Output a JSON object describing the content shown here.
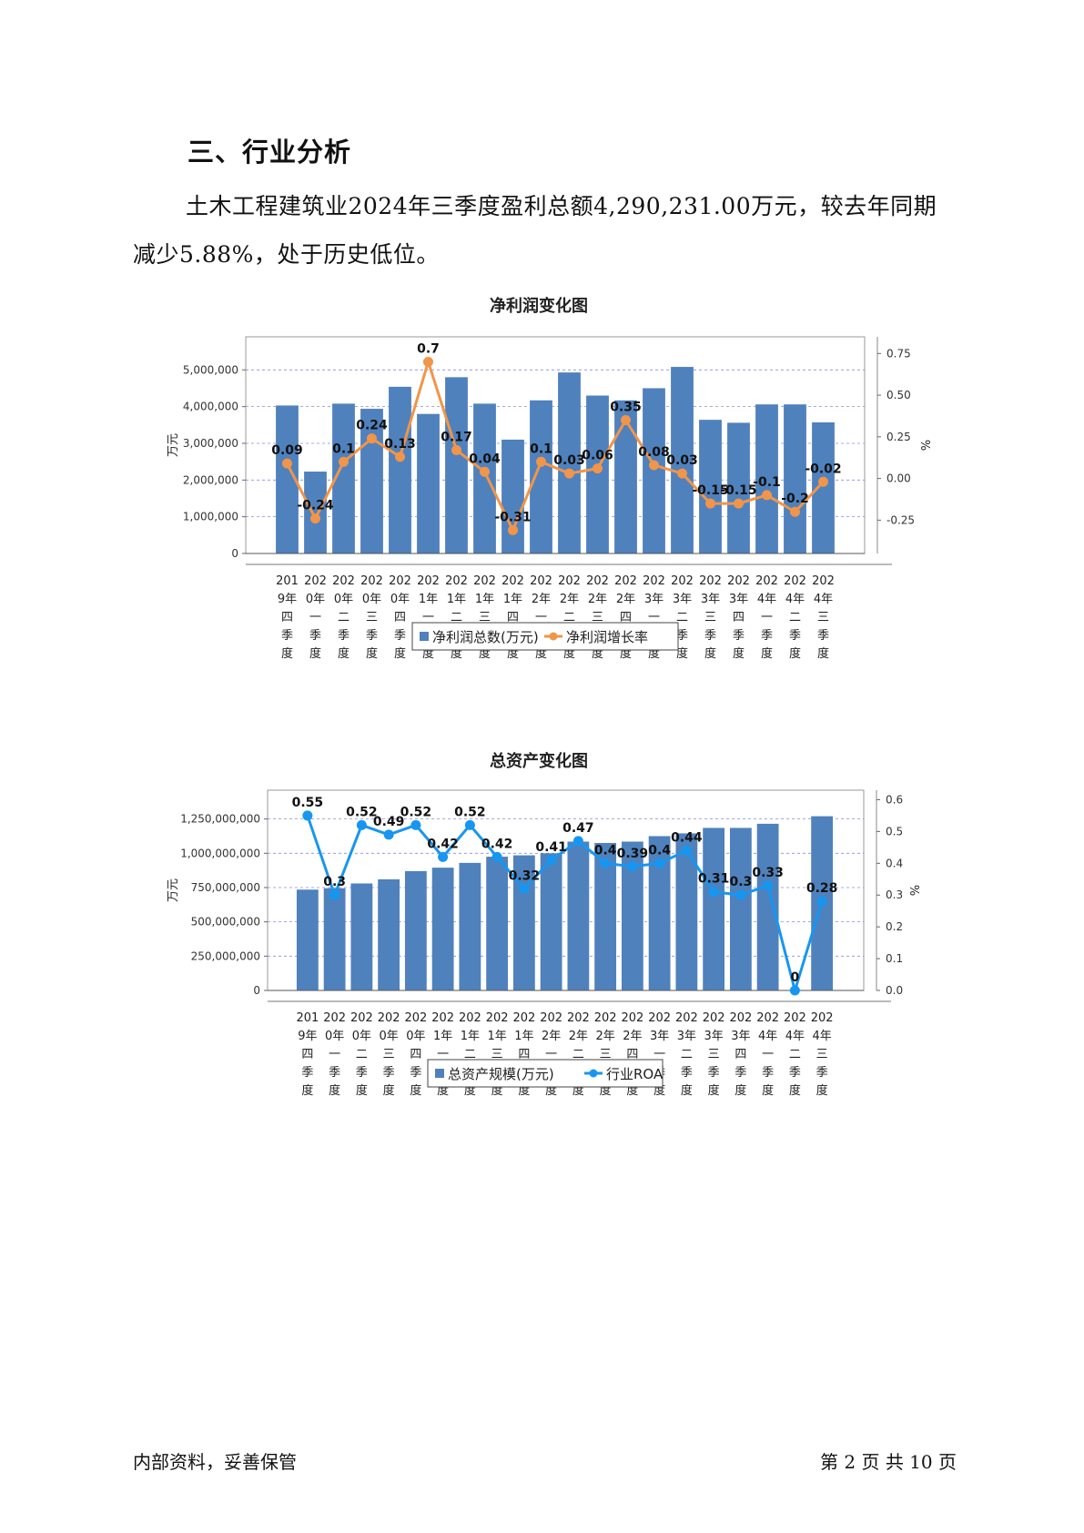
{
  "section": {
    "title": "三、行业分析",
    "paragraph": "土木工程建筑业2024年三季度盈利总额4,290,231.00万元，较去年同期减少5.88%，处于历史低位。"
  },
  "footer": {
    "left": "内部资料，妥善保管",
    "right": "第 2 页 共 10 页"
  },
  "colors": {
    "bar": "#4f81bd",
    "line1": "#f0954a",
    "line2": "#1796f0"
  },
  "chart_data": [
    {
      "type": "bar",
      "title": "净利润变化图",
      "ylabel": "万元",
      "y2label": "%",
      "categories": [
        "2019年四季度",
        "2020年一季度",
        "2020年二季度",
        "2020年三季度",
        "2020年四季度",
        "2021年一季度",
        "2021年二季度",
        "2021年三季度",
        "2021年四季度",
        "2022年一季度",
        "2022年二季度",
        "2022年三季度",
        "2022年四季度",
        "2023年一季度",
        "2023年二季度",
        "2023年三季度",
        "2023年四季度",
        "2024年一季度",
        "2024年二季度",
        "2024年三季度"
      ],
      "x_tick_lines": [
        [
          "201",
          "9年",
          "四",
          "季",
          "度"
        ],
        [
          "202",
          "0年",
          "一",
          "季",
          "度"
        ],
        [
          "202",
          "0年",
          "二",
          "季",
          "度"
        ],
        [
          "202",
          "0年",
          "三",
          "季",
          "度"
        ],
        [
          "202",
          "0年",
          "四",
          "季",
          "度"
        ],
        [
          "202",
          "1年",
          "一",
          "季",
          "度"
        ],
        [
          "202",
          "1年",
          "二",
          "季",
          "度"
        ],
        [
          "202",
          "1年",
          "三",
          "季",
          "度"
        ],
        [
          "202",
          "1年",
          "四",
          "季",
          "度"
        ],
        [
          "202",
          "2年",
          "一",
          "季",
          "度"
        ],
        [
          "202",
          "2年",
          "二",
          "季",
          "度"
        ],
        [
          "202",
          "2年",
          "三",
          "季",
          "度"
        ],
        [
          "202",
          "2年",
          "四",
          "季",
          "度"
        ],
        [
          "202",
          "3年",
          "一",
          "季",
          "度"
        ],
        [
          "202",
          "3年",
          "二",
          "季",
          "度"
        ],
        [
          "202",
          "3年",
          "三",
          "季",
          "度"
        ],
        [
          "202",
          "3年",
          "四",
          "季",
          "度"
        ],
        [
          "202",
          "4年",
          "一",
          "季",
          "度"
        ],
        [
          "202",
          "4年",
          "二",
          "季",
          "度"
        ],
        [
          "202",
          "4年",
          "三",
          "季",
          "度"
        ]
      ],
      "yticks": [
        "0",
        "1,000,000",
        "2,000,000",
        "3,000,000",
        "4,000,000",
        "5,000,000"
      ],
      "ylim": [
        0,
        5900000
      ],
      "y2ticks": [
        "-0.25",
        "0.00",
        "0.25",
        "0.50",
        "0.75"
      ],
      "y2lim": [
        -0.45,
        0.85
      ],
      "series": [
        {
          "name": "净利润总数(万元)",
          "kind": "bar",
          "values": [
            4030000,
            2230000,
            4080000,
            3940000,
            4540000,
            3800000,
            4800000,
            4080000,
            3100000,
            4170000,
            4930000,
            4300000,
            4170000,
            4500000,
            5080000,
            3640000,
            3560000,
            4060000,
            4060000,
            3570000
          ]
        },
        {
          "name": "净利润增长率",
          "kind": "line",
          "values": [
            0.09,
            -0.24,
            0.1,
            0.24,
            0.13,
            0.7,
            0.17,
            0.04,
            -0.31,
            0.1,
            0.03,
            0.06,
            0.35,
            0.08,
            0.03,
            -0.15,
            -0.15,
            -0.1,
            -0.2,
            -0.02
          ],
          "labels": [
            "0.09",
            "-0.24",
            "0.1",
            "0.24",
            "0.13",
            "0.7",
            "0.17",
            "0.04",
            "-0.31",
            "0.1",
            "0.03",
            "0.06",
            "0.35",
            "0.08",
            "0.03",
            "-0.15",
            "-0.15",
            "-0.1",
            "-0.2",
            "-0.02"
          ]
        }
      ],
      "legend": [
        "净利润总数(万元)",
        "净利润增长率"
      ],
      "grid": true
    },
    {
      "type": "bar",
      "title": "总资产变化图",
      "ylabel": "万元",
      "y2label": "%",
      "categories": [
        "2019年四季度",
        "2020年一季度",
        "2020年二季度",
        "2020年三季度",
        "2020年四季度",
        "2021年一季度",
        "2021年二季度",
        "2021年三季度",
        "2021年四季度",
        "2022年一季度",
        "2022年二季度",
        "2022年三季度",
        "2022年四季度",
        "2023年一季度",
        "2023年二季度",
        "2023年三季度",
        "2023年四季度",
        "2024年一季度",
        "2024年二季度",
        "2024年三季度"
      ],
      "x_tick_lines": [
        [
          "201",
          "9年",
          "四",
          "季",
          "度"
        ],
        [
          "202",
          "0年",
          "一",
          "季",
          "度"
        ],
        [
          "202",
          "0年",
          "二",
          "季",
          "度"
        ],
        [
          "202",
          "0年",
          "三",
          "季",
          "度"
        ],
        [
          "202",
          "0年",
          "四",
          "季",
          "度"
        ],
        [
          "202",
          "1年",
          "一",
          "季",
          "度"
        ],
        [
          "202",
          "1年",
          "二",
          "季",
          "度"
        ],
        [
          "202",
          "1年",
          "三",
          "季",
          "度"
        ],
        [
          "202",
          "1年",
          "四",
          "季",
          "度"
        ],
        [
          "202",
          "2年",
          "一",
          "季",
          "度"
        ],
        [
          "202",
          "2年",
          "二",
          "季",
          "度"
        ],
        [
          "202",
          "2年",
          "三",
          "季",
          "度"
        ],
        [
          "202",
          "2年",
          "四",
          "季",
          "度"
        ],
        [
          "202",
          "3年",
          "一",
          "季",
          "度"
        ],
        [
          "202",
          "3年",
          "二",
          "季",
          "度"
        ],
        [
          "202",
          "3年",
          "三",
          "季",
          "度"
        ],
        [
          "202",
          "3年",
          "四",
          "季",
          "度"
        ],
        [
          "202",
          "4年",
          "一",
          "季",
          "度"
        ],
        [
          "202",
          "4年",
          "二",
          "季",
          "度"
        ],
        [
          "202",
          "4年",
          "三",
          "季",
          "度"
        ]
      ],
      "yticks": [
        "0",
        "250,000,000",
        "500,000,000",
        "750,000,000",
        "1,000,000,000",
        "1,250,000,000"
      ],
      "ylim": [
        0,
        1460000000
      ],
      "y2ticks": [
        "0.0",
        "0.1",
        "0.2",
        "0.3",
        "0.4",
        "0.5",
        "0.6"
      ],
      "y2lim": [
        0,
        0.63
      ],
      "series": [
        {
          "name": "总资产规模(万元)",
          "kind": "bar",
          "values": [
            735000000,
            745000000,
            780000000,
            810000000,
            870000000,
            895000000,
            930000000,
            975000000,
            985000000,
            1000000000,
            1085000000,
            1075000000,
            1085000000,
            1125000000,
            1145000000,
            1185000000,
            1185000000,
            1215000000,
            0,
            1270000000
          ]
        },
        {
          "name": "行业ROA",
          "kind": "line",
          "values": [
            0.55,
            0.3,
            0.52,
            0.49,
            0.52,
            0.42,
            0.52,
            0.42,
            0.32,
            0.41,
            0.47,
            0.4,
            0.39,
            0.4,
            0.44,
            0.31,
            0.3,
            0.33,
            0,
            0.28
          ],
          "labels": [
            "0.55",
            "0.3",
            "0.52",
            "0.49",
            "0.52",
            "0.42",
            "0.52",
            "0.42",
            "0.32",
            "0.41",
            "0.47",
            "0.4",
            "0.39",
            "0.4",
            "0.44",
            "0.31",
            "0.3",
            "0.33",
            "0",
            "0.28"
          ]
        }
      ],
      "legend": [
        "总资产规模(万元)",
        "行业ROA"
      ],
      "grid": true
    }
  ]
}
